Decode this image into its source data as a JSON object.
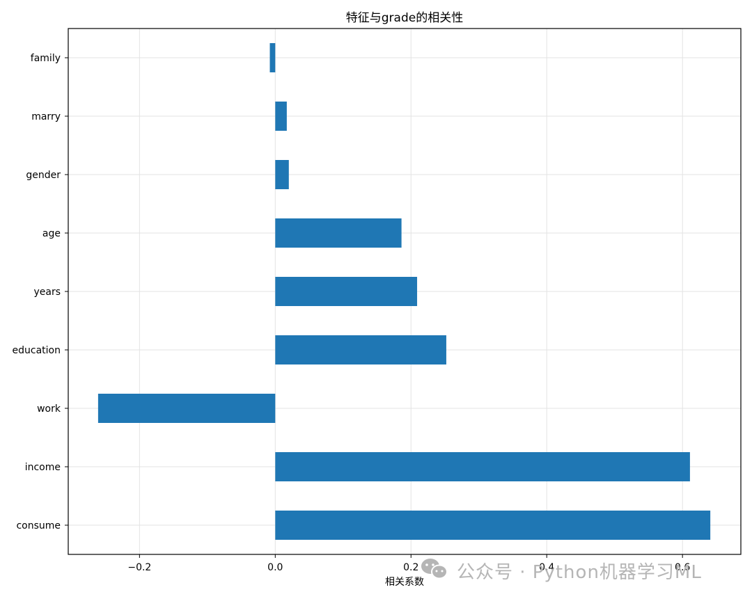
{
  "chart_data": {
    "type": "bar",
    "orientation": "horizontal",
    "title": "特征与grade的相关性",
    "xlabel": "相关系数",
    "ylabel": "",
    "categories": [
      "consume",
      "income",
      "work",
      "education",
      "years",
      "age",
      "gender",
      "marry",
      "family"
    ],
    "values": [
      0.641,
      0.611,
      -0.261,
      0.252,
      0.209,
      0.186,
      0.02,
      0.017,
      -0.008
    ],
    "xlim": [
      -0.305,
      0.686
    ],
    "xticks": [
      -0.2,
      0.0,
      0.2,
      0.4,
      0.6
    ],
    "xtick_labels": [
      "−0.2",
      "0.0",
      "0.2",
      "0.4",
      "0.6"
    ],
    "grid": true,
    "bar_color": "#1f77b4"
  },
  "watermark": {
    "text": "公众号 · Python机器学习ML",
    "icon": "wechat-icon"
  }
}
